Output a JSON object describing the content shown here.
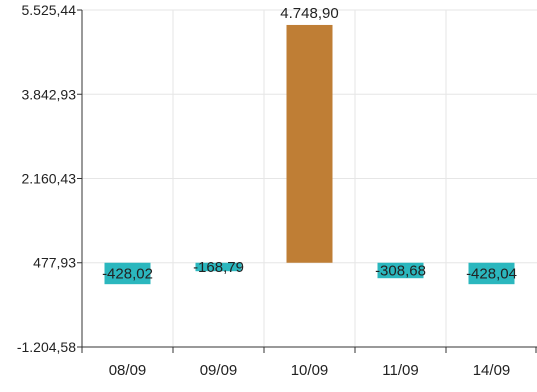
{
  "chart_data": {
    "type": "bar",
    "categories": [
      "08/09",
      "09/09",
      "10/09",
      "11/09",
      "14/09"
    ],
    "bars": [
      {
        "start": 477.93,
        "end": 49.91,
        "label": "-428,02",
        "color": "#2bb7be"
      },
      {
        "start": 477.93,
        "end": 309.14,
        "label": "-168,79",
        "color": "#2bb7be"
      },
      {
        "start": 477.93,
        "end": 5226.83,
        "label": "4.748,90",
        "color": "#bf7e35"
      },
      {
        "start": 477.93,
        "end": 169.25,
        "label": "-308,68",
        "color": "#2bb7be"
      },
      {
        "start": 477.93,
        "end": 49.89,
        "label": "-428,04",
        "color": "#2bb7be"
      }
    ],
    "yticks": [
      {
        "value": 5525.44,
        "label": "5.525,44"
      },
      {
        "value": 3842.93,
        "label": "3.842,93"
      },
      {
        "value": 2160.43,
        "label": "2.160,43"
      },
      {
        "value": 477.93,
        "label": "477,93"
      },
      {
        "value": -1204.58,
        "label": "-1.204,58"
      }
    ],
    "ylim": [
      -1204.58,
      5525.44
    ],
    "grid": true,
    "colors": {
      "negative": "#2bb7be",
      "positive": "#bf7e35",
      "grid": "#e6e6e6",
      "axis": "#333333",
      "text": "#222222"
    }
  }
}
